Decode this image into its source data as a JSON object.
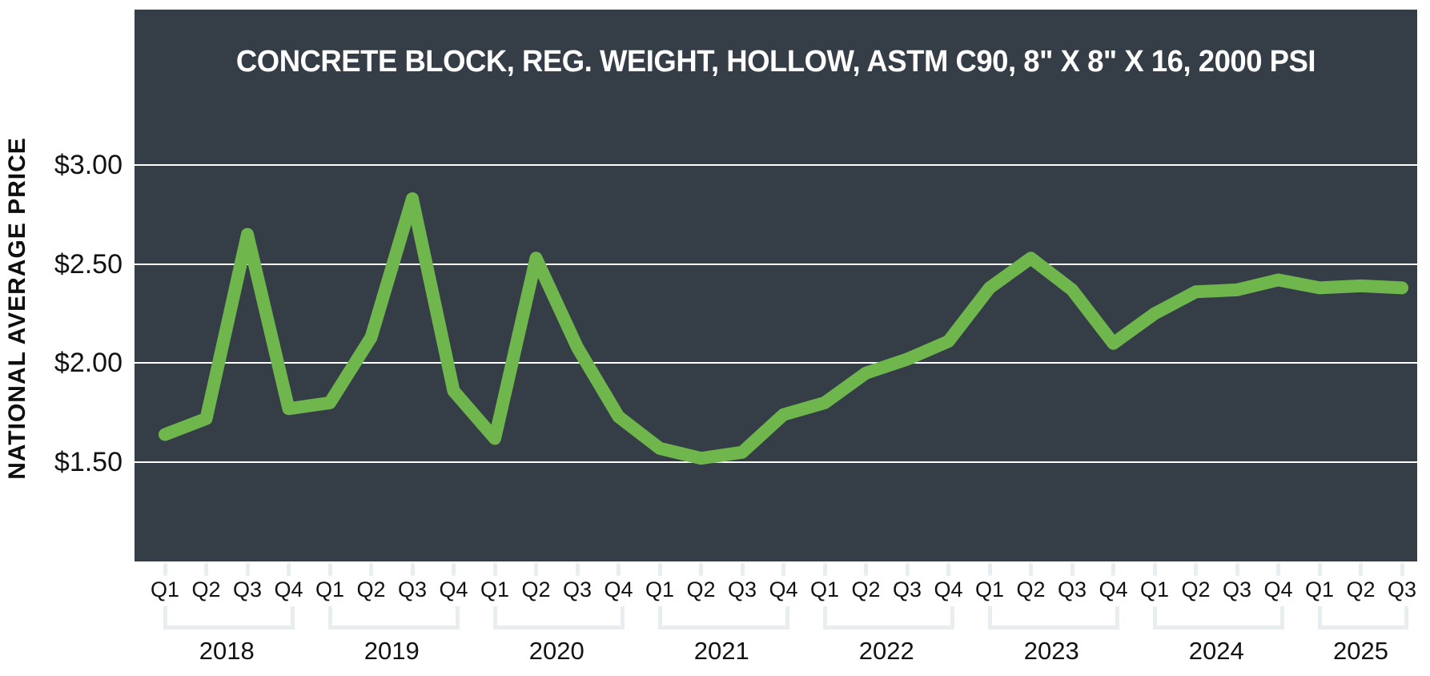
{
  "page": {
    "background": "#ffffff"
  },
  "chart_data": {
    "type": "line",
    "title": "CONCRETE BLOCK, REG. WEIGHT, HOLLOW, ASTM C90, 8\" X 8\" X 16, 2000 PSI",
    "xlabel": "",
    "ylabel": "NATIONAL AVERAGE PRICE",
    "ylim": [
      1.0,
      3.78
    ],
    "grid": true,
    "legend_position": "none",
    "line_color": "#6fb64d",
    "plot_background": "#353e47",
    "gridline_color": "#fdfdfd",
    "tick_color": "#e8edf0",
    "label_color": "#121212",
    "title_color": "#ffffff",
    "y_ticks": [
      {
        "label": "$3.00",
        "value": 3.0
      },
      {
        "label": "$2.50",
        "value": 2.5
      },
      {
        "label": "$2.00",
        "value": 2.0
      },
      {
        "label": "$1.50",
        "value": 1.5
      }
    ],
    "series": [
      {
        "name": "National Average Price",
        "years": [
          {
            "year": "2018",
            "quarters": [
              "Q1",
              "Q2",
              "Q3",
              "Q4"
            ],
            "values": [
              1.64,
              1.72,
              2.65,
              1.77
            ]
          },
          {
            "year": "2019",
            "quarters": [
              "Q1",
              "Q2",
              "Q3",
              "Q4"
            ],
            "values": [
              1.8,
              2.13,
              2.83,
              1.86
            ]
          },
          {
            "year": "2020",
            "quarters": [
              "Q1",
              "Q2",
              "Q3",
              "Q4"
            ],
            "values": [
              1.62,
              2.53,
              2.08,
              1.73
            ]
          },
          {
            "year": "2021",
            "quarters": [
              "Q1",
              "Q2",
              "Q3",
              "Q4"
            ],
            "values": [
              1.57,
              1.52,
              1.55,
              1.74
            ]
          },
          {
            "year": "2022",
            "quarters": [
              "Q1",
              "Q2",
              "Q3",
              "Q4"
            ],
            "values": [
              1.8,
              1.95,
              2.02,
              2.11
            ]
          },
          {
            "year": "2023",
            "quarters": [
              "Q1",
              "Q2",
              "Q3",
              "Q4"
            ],
            "values": [
              2.38,
              2.53,
              2.37,
              2.1
            ]
          },
          {
            "year": "2024",
            "quarters": [
              "Q1",
              "Q2",
              "Q3",
              "Q4"
            ],
            "values": [
              2.25,
              2.36,
              2.37,
              2.42
            ]
          },
          {
            "year": "2025",
            "quarters": [
              "Q1",
              "Q2",
              "Q3"
            ],
            "values": [
              2.38,
              2.39,
              2.38
            ]
          }
        ]
      }
    ]
  }
}
